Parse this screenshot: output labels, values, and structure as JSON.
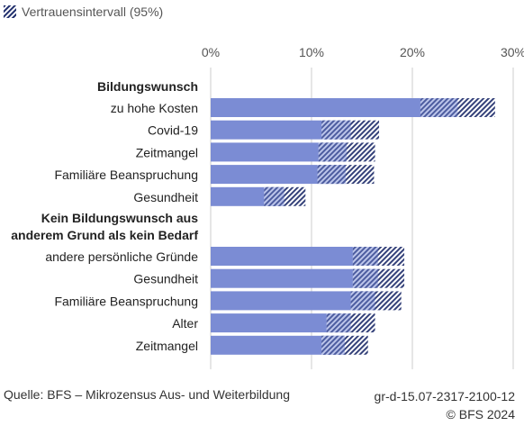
{
  "legend": {
    "label": "Vertrauensintervall (95%)"
  },
  "footer": {
    "source": "Quelle: BFS – Mikrozensus Aus- und Weiterbildung",
    "code": "gr-d-15.07-2317-2100-12",
    "copyright": "© BFS 2024"
  },
  "colors": {
    "bar": "#7b8cd4",
    "ci": "#1f2d6b",
    "grid": "#cccccc"
  },
  "chart_data": {
    "type": "bar",
    "orientation": "horizontal",
    "xlim": [
      0,
      30
    ],
    "x_ticks": [
      "0%",
      "10%",
      "20%",
      "30%"
    ],
    "grid": true,
    "groups": [
      {
        "label": "Bildungswunsch",
        "label_lines": [
          "Bildungswunsch"
        ],
        "items": [
          {
            "label": "zu hohe Kosten",
            "value": 24.5,
            "ci": [
              20.8,
              28.2
            ]
          },
          {
            "label": "Covid-19",
            "value": 13.9,
            "ci": [
              11.0,
              16.7
            ]
          },
          {
            "label": "Zeitmangel",
            "value": 13.5,
            "ci": [
              10.7,
              16.3
            ]
          },
          {
            "label": "Familiäre Beanspruchung",
            "value": 13.4,
            "ci": [
              10.6,
              16.2
            ]
          },
          {
            "label": "Gesundheit",
            "value": 7.3,
            "ci": [
              5.3,
              9.4
            ]
          }
        ]
      },
      {
        "label": "Kein Bildungswunsch aus anderem Grund als kein Bedarf",
        "label_lines": [
          "Kein Bildungswunsch aus",
          "anderem Grund als kein Bedarf"
        ],
        "items": [
          {
            "label": "andere persönliche Gründe",
            "value": 16.6,
            "ci": [
              14.1,
              19.2
            ]
          },
          {
            "label": "Gesundheit",
            "value": 16.6,
            "ci": [
              14.1,
              19.2
            ]
          },
          {
            "label": "Familiäre Beanspruchung",
            "value": 16.3,
            "ci": [
              13.9,
              18.9
            ]
          },
          {
            "label": "Alter",
            "value": 13.9,
            "ci": [
              11.5,
              16.3
            ]
          },
          {
            "label": "Zeitmangel",
            "value": 13.3,
            "ci": [
              11.0,
              15.6
            ]
          }
        ]
      }
    ]
  }
}
